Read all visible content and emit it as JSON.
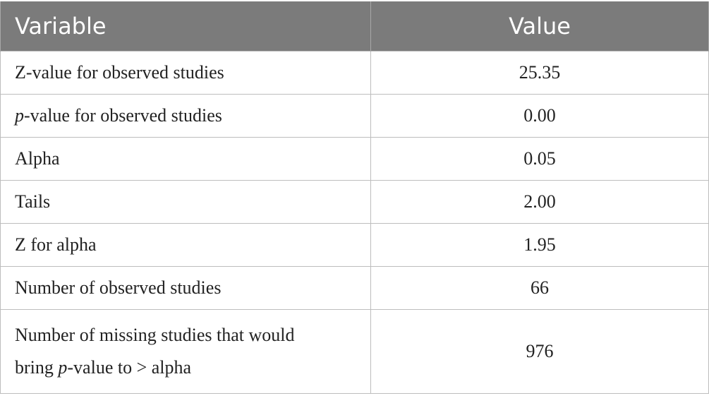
{
  "table": {
    "headers": {
      "variable": "Variable",
      "value": "Value"
    },
    "rows": [
      {
        "label": "Z-value for observed studies",
        "value": "25.35"
      },
      {
        "label_italic": "p",
        "label_rest": "-value for observed studies",
        "value": "0.00"
      },
      {
        "label": "Alpha",
        "value": "0.05"
      },
      {
        "label": "Tails",
        "value": "2.00"
      },
      {
        "label": "Z for alpha",
        "value": "1.95"
      },
      {
        "label": "Number of observed studies",
        "value": "66"
      },
      {
        "label_line1": "Number of missing studies that would",
        "label_line2_pre": "bring ",
        "label_line2_italic": "p",
        "label_line2_post": "-value to > alpha",
        "value": "976"
      }
    ]
  }
}
